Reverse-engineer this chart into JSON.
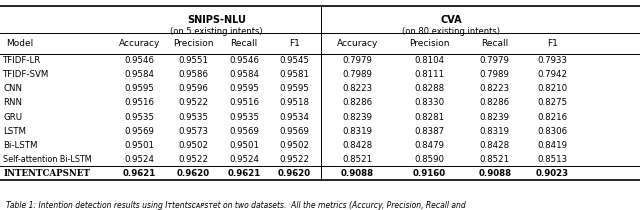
{
  "title_caption": "Table 1: Intention detection results using INTENTCAPSNET on two datasets. All the metrics (Accurcy, Precision, Recall and",
  "col_groups": [
    {
      "label": "SNIPS-NLU",
      "sub": "(on 5 existing intents)",
      "span": [
        1,
        4
      ]
    },
    {
      "label": "CVA",
      "sub": "(on 80 existing intents)",
      "span": [
        5,
        8
      ]
    }
  ],
  "col_headers": [
    "Model",
    "Accuracy",
    "Precision",
    "Recall",
    "F1",
    "Accuracy",
    "Precision",
    "Recall",
    "F1"
  ],
  "rows": [
    [
      "TFIDF-LR",
      "0.9546",
      "0.9551",
      "0.9546",
      "0.9545",
      "0.7979",
      "0.8104",
      "0.7979",
      "0.7933"
    ],
    [
      "TFIDF-SVM",
      "0.9584",
      "0.9586",
      "0.9584",
      "0.9581",
      "0.7989",
      "0.8111",
      "0.7989",
      "0.7942"
    ],
    [
      "CNN",
      "0.9595",
      "0.9596",
      "0.9595",
      "0.9595",
      "0.8223",
      "0.8288",
      "0.8223",
      "0.8210"
    ],
    [
      "RNN",
      "0.9516",
      "0.9522",
      "0.9516",
      "0.9518",
      "0.8286",
      "0.8330",
      "0.8286",
      "0.8275"
    ],
    [
      "GRU",
      "0.9535",
      "0.9535",
      "0.9535",
      "0.9534",
      "0.8239",
      "0.8281",
      "0.8239",
      "0.8216"
    ],
    [
      "LSTM",
      "0.9569",
      "0.9573",
      "0.9569",
      "0.9569",
      "0.8319",
      "0.8387",
      "0.8319",
      "0.8306"
    ],
    [
      "Bi-LSTM",
      "0.9501",
      "0.9502",
      "0.9501",
      "0.9502",
      "0.8428",
      "0.8479",
      "0.8428",
      "0.8419"
    ],
    [
      "Self-attention Bi-LSTM",
      "0.9524",
      "0.9522",
      "0.9524",
      "0.9522",
      "0.8521",
      "0.8590",
      "0.8521",
      "0.8513"
    ],
    [
      "INTENTCAPSNET",
      "0.9621",
      "0.9620",
      "0.9621",
      "0.9620",
      "0.9088",
      "0.9160",
      "0.9088",
      "0.9023"
    ]
  ],
  "last_row_bold": true,
  "bg_color": "#ffffff",
  "text_color": "#000000",
  "caption": "Table 1: Intention detection results using INTENTCAPSNET on two datasets.  All the metrics (Accurcy, Precision, Recall and"
}
